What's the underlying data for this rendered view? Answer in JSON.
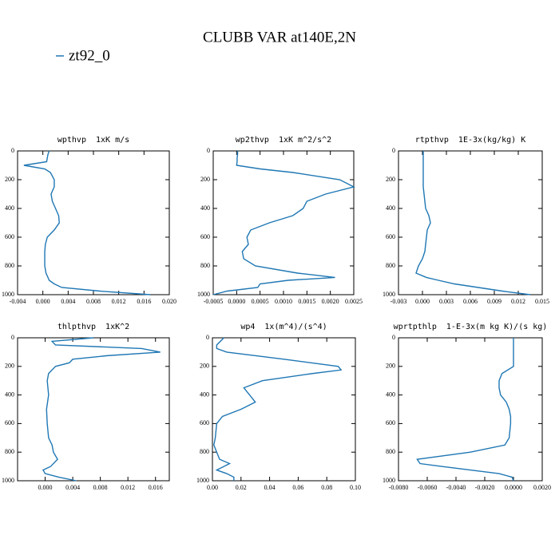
{
  "title": "CLUBB VAR at140E,2N",
  "legend": {
    "name": "zt92_0",
    "color": "#1f77b4"
  },
  "chart_data": [
    {
      "type": "line",
      "title": "wpthvp  1xK m/s",
      "color": "#1f77b4",
      "y": [
        0,
        25,
        50,
        75,
        100,
        125,
        150,
        200,
        250,
        300,
        350,
        400,
        450,
        500,
        550,
        600,
        650,
        700,
        750,
        800,
        850,
        880,
        900,
        925,
        950,
        975,
        1000
      ],
      "values": [
        0.001,
        0.0008,
        0.0007,
        0.0006,
        -0.003,
        0.0003,
        0.0012,
        0.0018,
        0.0018,
        0.0013,
        0.0015,
        0.002,
        0.0025,
        0.0026,
        0.0018,
        0.0007,
        0.0004,
        0.0003,
        0.0003,
        0.0003,
        0.0005,
        0.0008,
        0.001,
        0.0018,
        0.003,
        0.009,
        0.017
      ],
      "xlim": [
        -0.004,
        0.02
      ],
      "xticks": [
        {
          "value": -0.004,
          "label": "-0.004"
        },
        {
          "value": 0,
          "label": "0.000"
        },
        {
          "value": 0.004,
          "label": "0.004"
        },
        {
          "value": 0.008,
          "label": "0.008"
        },
        {
          "value": 0.012,
          "label": "0.012"
        },
        {
          "value": 0.016,
          "label": "0.016"
        },
        {
          "value": 0.02,
          "label": "0.020"
        }
      ],
      "ylim": [
        1000,
        0
      ],
      "yticks": [
        0,
        200,
        400,
        600,
        800,
        1000
      ]
    },
    {
      "type": "line",
      "title": "wp2thvp  1xK m^2/s^2",
      "color": "#1f77b4",
      "y": [
        0,
        25,
        50,
        75,
        100,
        125,
        150,
        200,
        250,
        300,
        350,
        400,
        450,
        500,
        550,
        600,
        650,
        700,
        750,
        800,
        850,
        880,
        900,
        925,
        950,
        975,
        1000
      ],
      "values": [
        2e-05,
        2e-05,
        1e-05,
        1e-05,
        0.0,
        0.0005,
        0.0012,
        0.0022,
        0.0025,
        0.0019,
        0.0015,
        0.00142,
        0.0012,
        0.0007,
        0.0003,
        0.00022,
        0.00025,
        0.00012,
        0.00015,
        0.0004,
        0.0013,
        0.0021,
        0.0011,
        0.0005,
        0.00045,
        -0.0002,
        -0.0005
      ],
      "xlim": [
        -0.0005,
        0.0025
      ],
      "xticks": [
        {
          "value": -0.0005,
          "label": "-0.0005"
        },
        {
          "value": 0,
          "label": "0.0000"
        },
        {
          "value": 0.0005,
          "label": "0.0005"
        },
        {
          "value": 0.001,
          "label": "0.0010"
        },
        {
          "value": 0.0015,
          "label": "0.0015"
        },
        {
          "value": 0.002,
          "label": "0.0020"
        },
        {
          "value": 0.0025,
          "label": "0.0025"
        }
      ],
      "ylim": [
        1000,
        0
      ],
      "yticks": [
        0,
        200,
        400,
        600,
        800,
        1000
      ]
    },
    {
      "type": "line",
      "title": "rtpthvp  1E-3x(kg/kg) K",
      "color": "#1f77b4",
      "y": [
        0,
        25,
        50,
        75,
        100,
        125,
        150,
        200,
        250,
        300,
        350,
        400,
        450,
        500,
        550,
        600,
        650,
        700,
        750,
        800,
        850,
        880,
        900,
        925,
        950,
        975,
        1000
      ],
      "values": [
        0.0001,
        0.0001,
        0.0001,
        0.0001,
        0.0001,
        0.0001,
        0.0001,
        0.0001,
        0.0001,
        0.0002,
        0.0003,
        0.0004,
        0.0008,
        0.001,
        0.0006,
        0.0005,
        0.0004,
        0.0003,
        0.0,
        -0.0005,
        -0.0008,
        0.0005,
        0.002,
        0.004,
        0.007,
        0.01,
        0.0135
      ],
      "xlim": [
        -0.003,
        0.015
      ],
      "xticks": [
        {
          "value": -0.003,
          "label": "-0.003"
        },
        {
          "value": 0,
          "label": "0.000"
        },
        {
          "value": 0.003,
          "label": "0.003"
        },
        {
          "value": 0.006,
          "label": "0.006"
        },
        {
          "value": 0.009,
          "label": "0.009"
        },
        {
          "value": 0.012,
          "label": "0.012"
        },
        {
          "value": 0.015,
          "label": "0.015"
        }
      ],
      "ylim": [
        1000,
        0
      ],
      "yticks": [
        0,
        200,
        400,
        600,
        800,
        1000
      ]
    },
    {
      "type": "line",
      "title": "thlpthvp  1xK^2",
      "color": "#1f77b4",
      "y": [
        0,
        25,
        50,
        75,
        100,
        125,
        150,
        175,
        200,
        250,
        300,
        400,
        500,
        600,
        700,
        750,
        800,
        850,
        900,
        925,
        950,
        975,
        1000
      ],
      "values": [
        0.007,
        0.001,
        0.0015,
        0.014,
        0.0167,
        0.009,
        0.004,
        0.0035,
        0.0015,
        0.0005,
        0.0003,
        0.0005,
        0.0002,
        0.0003,
        0.0005,
        0.001,
        0.0012,
        0.0018,
        0.0008,
        -0.0003,
        0.0,
        0.002,
        0.0045
      ],
      "xlim": [
        -0.004,
        0.018
      ],
      "xticks": [
        {
          "value": 0,
          "label": "0.000"
        },
        {
          "value": 0.004,
          "label": "0.004"
        },
        {
          "value": 0.008,
          "label": "0.008"
        },
        {
          "value": 0.012,
          "label": "0.012"
        },
        {
          "value": 0.016,
          "label": "0.016"
        }
      ],
      "ylim": [
        1000,
        0
      ],
      "yticks": [
        0,
        200,
        400,
        600,
        800,
        1000
      ]
    },
    {
      "type": "line",
      "title": "wp4  1x(m^4)/(s^4)",
      "color": "#1f77b4",
      "y": [
        0,
        50,
        75,
        100,
        150,
        200,
        225,
        250,
        300,
        350,
        400,
        450,
        500,
        550,
        600,
        700,
        750,
        800,
        850,
        880,
        900,
        925,
        950,
        975,
        1000
      ],
      "values": [
        0.008,
        0.003,
        0.003,
        0.01,
        0.05,
        0.088,
        0.09,
        0.07,
        0.035,
        0.022,
        0.026,
        0.03,
        0.02,
        0.007,
        0.003,
        0.002,
        0.001,
        0.003,
        0.005,
        0.012,
        0.008,
        0.003,
        0.01,
        0.015,
        0.015
      ],
      "xlim": [
        0,
        0.1
      ],
      "xticks": [
        {
          "value": 0,
          "label": "0.00"
        },
        {
          "value": 0.02,
          "label": "0.02"
        },
        {
          "value": 0.04,
          "label": "0.04"
        },
        {
          "value": 0.06,
          "label": "0.06"
        },
        {
          "value": 0.08,
          "label": "0.08"
        },
        {
          "value": 0.1,
          "label": "0.10"
        }
      ],
      "ylim": [
        1000,
        0
      ],
      "yticks": [
        0,
        200,
        400,
        600,
        800,
        1000
      ]
    },
    {
      "type": "line",
      "title": "wprtpthlp  1-E-3x(m kg K)/(s kg)",
      "color": "#1f77b4",
      "y": [
        0,
        100,
        200,
        250,
        300,
        350,
        400,
        450,
        500,
        550,
        600,
        700,
        750,
        800,
        850,
        880,
        900,
        925,
        950,
        975,
        1000
      ],
      "values": [
        0.0,
        0.0,
        0.0,
        -0.0008,
        -0.001,
        -0.001,
        -0.0009,
        -0.0005,
        -0.0003,
        -0.0002,
        -0.0002,
        -0.0003,
        -0.0006,
        -0.003,
        -0.0067,
        -0.0065,
        -0.005,
        -0.003,
        -0.001,
        -0.0001,
        0.0
      ],
      "xlim": [
        -0.008,
        0.002
      ],
      "xticks": [
        {
          "value": -0.008,
          "label": "-0.0080"
        },
        {
          "value": -0.006,
          "label": "-0.0060"
        },
        {
          "value": -0.004,
          "label": "-0.0040"
        },
        {
          "value": -0.002,
          "label": "-0.0020"
        },
        {
          "value": 0,
          "label": "0.0000"
        },
        {
          "value": 0.002,
          "label": "0.0020"
        }
      ],
      "ylim": [
        1000,
        0
      ],
      "yticks": [
        0,
        200,
        400,
        600,
        800,
        1000
      ]
    }
  ]
}
